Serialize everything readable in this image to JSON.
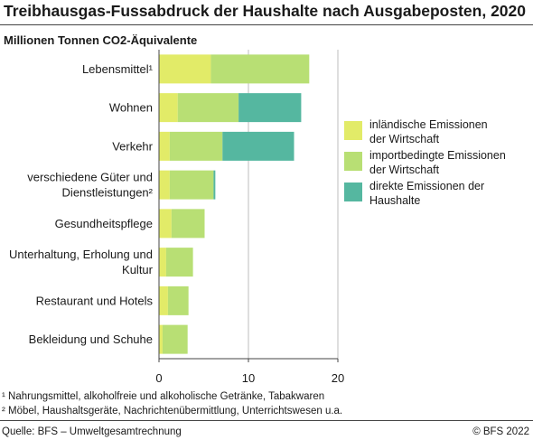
{
  "title": "Treibhausgas-Fussabdruck der Haushalte nach Ausgabeposten, 2020",
  "subtitle": "Millionen Tonnen CO2-Äquivalente",
  "footnotes": [
    "¹ Nahrungsmittel, alkoholfreie und alkoholische Getränke, Tabakwaren",
    "² Möbel, Haushaltsgeräte, Nachrichtenübermittlung, Unterrichtswesen u.a."
  ],
  "source": "Quelle: BFS – Umweltgesamtrechnung",
  "copyright": "© BFS 2022",
  "colors": {
    "domestic": "#e2eb68",
    "imported": "#b8df74",
    "direct": "#55b7a0"
  },
  "chart_data": {
    "type": "bar",
    "orientation": "horizontal",
    "stacked": true,
    "title": "Treibhausgas-Fussabdruck der Haushalte nach Ausgabeposten, 2020",
    "subtitle": "Millionen Tonnen CO2-Äquivalente",
    "categories": [
      [
        "Lebensmittel¹"
      ],
      [
        "Wohnen"
      ],
      [
        "Verkehr"
      ],
      [
        "verschiedene Güter und",
        "Dienstleistungen²"
      ],
      [
        "Gesundheitspflege"
      ],
      [
        "Unterhaltung, Erholung und",
        "Kultur"
      ],
      [
        "Restaurant und Hotels"
      ],
      [
        "Bekleidung und Schuhe"
      ]
    ],
    "series": [
      {
        "name": "inländische Emissionen der Wirtschaft",
        "legend_lines": [
          "inländische Emissionen",
          "der Wirtschaft"
        ],
        "color": "#e2eb68",
        "values": [
          5.8,
          2.1,
          1.2,
          1.2,
          1.4,
          0.8,
          1.0,
          0.4
        ]
      },
      {
        "name": "importbedingte Emissionen der Wirtschaft",
        "legend_lines": [
          "importbedingte Emissionen",
          "der Wirtschaft"
        ],
        "color": "#b8df74",
        "values": [
          11.0,
          6.8,
          5.9,
          4.9,
          3.7,
          3.0,
          2.3,
          2.8
        ]
      },
      {
        "name": "direkte Emissionen der Haushalte",
        "legend_lines": [
          "direkte Emissionen der",
          "Haushalte"
        ],
        "color": "#55b7a0",
        "values": [
          0.0,
          7.0,
          8.0,
          0.2,
          0.0,
          0.0,
          0.0,
          0.0
        ]
      }
    ],
    "xlim": [
      0,
      20
    ],
    "xticks": [
      0,
      10,
      20
    ],
    "grid": "vertical",
    "legend": "right"
  }
}
